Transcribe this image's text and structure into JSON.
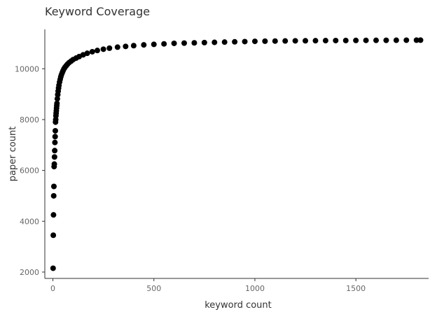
{
  "chart_data": {
    "type": "scatter",
    "title": "Keyword Coverage",
    "xlabel": "keyword count",
    "ylabel": "paper count",
    "xlim": [
      -40,
      1860
    ],
    "ylim": [
      1750,
      11550
    ],
    "x_ticks": [
      0,
      500,
      1000,
      1500
    ],
    "y_ticks": [
      2000,
      4000,
      6000,
      8000,
      10000
    ],
    "grid": false,
    "point_color": "#000000",
    "series": [
      {
        "points": [
          [
            1,
            2150
          ],
          [
            2,
            3450
          ],
          [
            3,
            4250
          ],
          [
            4,
            5000
          ],
          [
            5,
            5370
          ],
          [
            6,
            6150
          ],
          [
            7,
            6250
          ],
          [
            8,
            6530
          ],
          [
            9,
            6780
          ],
          [
            10,
            7100
          ],
          [
            11,
            7330
          ],
          [
            12,
            7560
          ],
          [
            13,
            7900
          ],
          [
            14,
            8000
          ],
          [
            15,
            8150
          ],
          [
            16,
            8250
          ],
          [
            17,
            8350
          ],
          [
            18,
            8450
          ],
          [
            19,
            8550
          ],
          [
            20,
            8640
          ],
          [
            22,
            8820
          ],
          [
            24,
            8980
          ],
          [
            26,
            9120
          ],
          [
            28,
            9240
          ],
          [
            30,
            9350
          ],
          [
            33,
            9480
          ],
          [
            36,
            9580
          ],
          [
            39,
            9680
          ],
          [
            42,
            9760
          ],
          [
            46,
            9840
          ],
          [
            50,
            9920
          ],
          [
            55,
            10000
          ],
          [
            60,
            10060
          ],
          [
            66,
            10120
          ],
          [
            72,
            10180
          ],
          [
            80,
            10240
          ],
          [
            90,
            10300
          ],
          [
            100,
            10360
          ],
          [
            115,
            10420
          ],
          [
            130,
            10480
          ],
          [
            150,
            10550
          ],
          [
            170,
            10610
          ],
          [
            195,
            10670
          ],
          [
            220,
            10720
          ],
          [
            250,
            10770
          ],
          [
            280,
            10810
          ],
          [
            320,
            10850
          ],
          [
            360,
            10880
          ],
          [
            400,
            10910
          ],
          [
            450,
            10940
          ],
          [
            500,
            10960
          ],
          [
            550,
            10980
          ],
          [
            600,
            11000
          ],
          [
            650,
            11010
          ],
          [
            700,
            11020
          ],
          [
            750,
            11030
          ],
          [
            800,
            11040
          ],
          [
            850,
            11050
          ],
          [
            900,
            11060
          ],
          [
            950,
            11070
          ],
          [
            1000,
            11080
          ],
          [
            1050,
            11085
          ],
          [
            1100,
            11090
          ],
          [
            1150,
            11095
          ],
          [
            1200,
            11100
          ],
          [
            1250,
            11102
          ],
          [
            1300,
            11105
          ],
          [
            1350,
            11108
          ],
          [
            1400,
            11110
          ],
          [
            1450,
            11112
          ],
          [
            1500,
            11115
          ],
          [
            1550,
            11117
          ],
          [
            1600,
            11119
          ],
          [
            1650,
            11120
          ],
          [
            1700,
            11122
          ],
          [
            1750,
            11124
          ],
          [
            1800,
            11126
          ],
          [
            1820,
            11127
          ]
        ]
      }
    ]
  }
}
